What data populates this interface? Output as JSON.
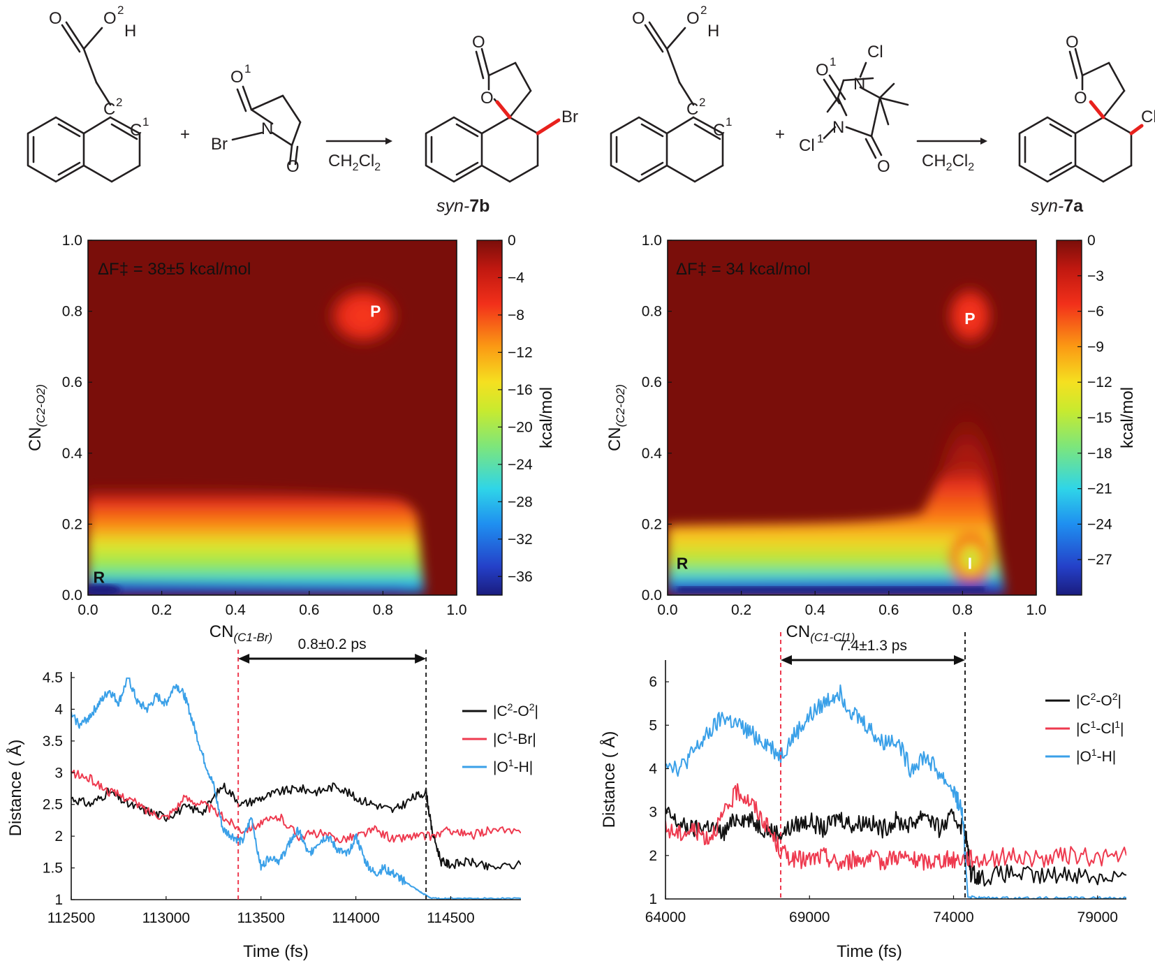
{
  "scheme": {
    "left": {
      "reactant1_atoms": {
        "O_carbonyl": "O",
        "O_hydroxyl": "O",
        "O_sup": "2",
        "H": "H",
        "C2": "C",
        "C2_sup": "2",
        "C1": "C",
        "C1_sup": "1"
      },
      "plus": "+",
      "reagent_atoms": {
        "O_top": "O",
        "O_top_sup": "1",
        "N": "N",
        "Br": "Br",
        "O_bottom": "O"
      },
      "conditions": "CH2Cl2",
      "product_atoms": {
        "O_carbonyl": "O",
        "O_ring": "O",
        "X": "Br"
      },
      "product_label_prefix": "syn-",
      "product_label_bold": "7b"
    },
    "right": {
      "reactant1_atoms": {
        "O_carbonyl": "O",
        "O_hydroxyl": "O",
        "O_sup": "2",
        "H": "H",
        "C2": "C",
        "C2_sup": "2",
        "C1": "C",
        "C1_sup": "1"
      },
      "plus": "+",
      "reagent_atoms": {
        "Cl_top": "Cl",
        "O_top": "O",
        "O_top_sup": "1",
        "N_top": "N",
        "N_left": "N",
        "Cl_left": "Cl",
        "Cl_left_sup": "1",
        "O_bottom": "O"
      },
      "conditions": "CH2Cl2",
      "product_atoms": {
        "O_carbonyl": "O",
        "O_ring": "O",
        "X": "Cl"
      },
      "product_label_prefix": "syn-",
      "product_label_bold": "7a"
    }
  },
  "chart_data": [
    {
      "type": "heatmap",
      "annotation": "ΔF‡ = 38±5 kcal/mol",
      "xlabel_main": "CN",
      "xlabel_sub": "(C1-Br)",
      "ylabel_main": "CN",
      "ylabel_sub": "(C2-O2)",
      "xlim": [
        0.0,
        1.0
      ],
      "ylim": [
        0.0,
        1.0
      ],
      "xticks": [
        "0.0",
        "0.2",
        "0.4",
        "0.6",
        "0.8",
        "1.0"
      ],
      "yticks": [
        "0.0",
        "0.2",
        "0.4",
        "0.6",
        "0.8",
        "1.0"
      ],
      "points": [
        {
          "label": "R",
          "x": 0.03,
          "y": 0.05
        },
        {
          "label": "P",
          "x": 0.78,
          "y": 0.8
        }
      ],
      "colorbar": {
        "label": "kcal/mol",
        "range": [
          -38,
          0
        ],
        "ticks": [
          "0",
          "−4",
          "−8",
          "−12",
          "−16",
          "−20",
          "−24",
          "−28",
          "−32",
          "−36"
        ],
        "tick_values": [
          0,
          -4,
          -8,
          -12,
          -16,
          -20,
          -24,
          -28,
          -32,
          -36
        ]
      },
      "features": [
        {
          "kind": "basin",
          "x": [
            0.0,
            0.85
          ],
          "y": [
            0.0,
            0.28
          ],
          "min_value": -38
        },
        {
          "kind": "well",
          "x": 0.76,
          "y": 0.8,
          "value": -6
        }
      ]
    },
    {
      "type": "heatmap",
      "annotation": "ΔF‡ = 34 kcal/mol",
      "xlabel_main": "CN",
      "xlabel_sub": "(C1-Cl1)",
      "ylabel_main": "CN",
      "ylabel_sub": "(C2-O2)",
      "xlim": [
        0.0,
        1.0
      ],
      "ylim": [
        0.0,
        1.0
      ],
      "xticks": [
        "0.0",
        "0.2",
        "0.4",
        "0.6",
        "0.8",
        "1.0"
      ],
      "yticks": [
        "0.0",
        "0.2",
        "0.4",
        "0.6",
        "0.8",
        "1.0"
      ],
      "points": [
        {
          "label": "R",
          "x": 0.04,
          "y": 0.09
        },
        {
          "label": "I",
          "x": 0.82,
          "y": 0.09
        },
        {
          "label": "P",
          "x": 0.82,
          "y": 0.78
        }
      ],
      "colorbar": {
        "label": "kcal/mol",
        "range": [
          -30,
          0
        ],
        "ticks": [
          "0",
          "−3",
          "−6",
          "−9",
          "−12",
          "−15",
          "−18",
          "−21",
          "−24",
          "−27"
        ],
        "tick_values": [
          0,
          -3,
          -6,
          -9,
          -12,
          -15,
          -18,
          -21,
          -24,
          -27
        ]
      },
      "features": [
        {
          "kind": "basin",
          "x": [
            0.0,
            0.93
          ],
          "y": [
            0.0,
            0.2
          ],
          "min_value": -30
        },
        {
          "kind": "well",
          "x": 0.83,
          "y": 0.12,
          "value": -12
        },
        {
          "kind": "well",
          "x": 0.82,
          "y": 0.8,
          "value": -5
        }
      ]
    },
    {
      "type": "line",
      "xlabel": "Time (fs)",
      "ylabel": "Distance ( Å)",
      "xlim": [
        112500,
        114870
      ],
      "ylim": [
        1,
        4.5
      ],
      "xticks": [
        "112500",
        "113000",
        "113500",
        "114000",
        "114500"
      ],
      "yticks": [
        "1",
        "1.5",
        "2",
        "2.5",
        "3",
        "3.5",
        "4",
        "4.5"
      ],
      "interval_label": "0.8±0.2 ps",
      "markers": [
        {
          "x": 113380,
          "color": "#ee3a4f"
        },
        {
          "x": 114370,
          "color": "#222222"
        }
      ],
      "series": [
        {
          "name": "|C2-O2|",
          "legend_main": "|C",
          "legend_sup1": "2",
          "legend_mid": "-O",
          "legend_sup2": "2",
          "legend_end": "|",
          "color": "#111111",
          "x": [
            112500,
            112600,
            112700,
            112800,
            112900,
            113000,
            113100,
            113200,
            113300,
            113400,
            113500,
            113600,
            113700,
            113800,
            113900,
            114000,
            114100,
            114200,
            114300,
            114370,
            114400,
            114450,
            114500,
            114600,
            114700,
            114870
          ],
          "y": [
            2.6,
            2.5,
            2.7,
            2.5,
            2.4,
            2.3,
            2.45,
            2.4,
            2.8,
            2.5,
            2.6,
            2.7,
            2.75,
            2.7,
            2.8,
            2.6,
            2.5,
            2.4,
            2.6,
            2.7,
            2.1,
            1.6,
            1.55,
            1.6,
            1.5,
            1.55
          ]
        },
        {
          "name": "|C1-Br|",
          "legend_main": "|C",
          "legend_sup1": "1",
          "legend_mid": "-Br|",
          "legend_sup2": "",
          "legend_end": "",
          "color": "#ee3a4f",
          "x": [
            112500,
            112600,
            112700,
            112800,
            112900,
            113000,
            113100,
            113200,
            113300,
            113400,
            113500,
            113600,
            113700,
            113800,
            113900,
            114000,
            114100,
            114200,
            114300,
            114400,
            114500,
            114600,
            114700,
            114870
          ],
          "y": [
            3.0,
            2.9,
            2.7,
            2.6,
            2.4,
            2.3,
            2.6,
            2.5,
            2.3,
            2.1,
            2.2,
            2.3,
            2.0,
            2.05,
            1.95,
            2.0,
            2.1,
            1.95,
            2.0,
            2.0,
            2.1,
            2.0,
            2.1,
            2.05
          ]
        },
        {
          "name": "|O1-H|",
          "legend_main": "|O",
          "legend_sup1": "1",
          "legend_mid": "-H|",
          "legend_sup2": "",
          "legend_end": "",
          "color": "#3aa0e8",
          "x": [
            112500,
            112550,
            112600,
            112650,
            112700,
            112750,
            112800,
            112850,
            112900,
            112950,
            113000,
            113050,
            113100,
            113150,
            113200,
            113250,
            113300,
            113350,
            113400,
            113450,
            113500,
            113550,
            113600,
            113650,
            113700,
            113750,
            113800,
            113850,
            113900,
            113950,
            114000,
            114050,
            114100,
            114150,
            114200,
            114250,
            114300,
            114350,
            114400,
            114500,
            114600,
            114700,
            114870
          ],
          "y": [
            3.9,
            3.75,
            3.9,
            4.1,
            4.3,
            4.1,
            4.5,
            4.1,
            4.0,
            4.2,
            4.1,
            4.4,
            4.2,
            3.7,
            3.2,
            2.8,
            2.1,
            2.0,
            1.9,
            2.3,
            1.5,
            1.7,
            1.6,
            1.9,
            2.1,
            1.7,
            1.9,
            2.0,
            1.8,
            1.7,
            2.0,
            1.6,
            1.4,
            1.5,
            1.4,
            1.3,
            1.2,
            1.1,
            1.02,
            1.02,
            1.02,
            1.02,
            1.02
          ]
        }
      ]
    },
    {
      "type": "line",
      "xlabel": "Time (fs)",
      "ylabel": "Distance ( Å)",
      "xlim": [
        64000,
        80000
      ],
      "ylim": [
        1,
        6.5
      ],
      "xticks": [
        "64000",
        "69000",
        "74000",
        "79000"
      ],
      "yticks": [
        "1",
        "2",
        "3",
        "4",
        "5",
        "6"
      ],
      "interval_label": "7.4±1.3 ps",
      "markers": [
        {
          "x": 68000,
          "color": "#ee3a4f"
        },
        {
          "x": 74400,
          "color": "#222222"
        }
      ],
      "series": [
        {
          "name": "|C2-O2|",
          "legend_main": "|C",
          "legend_sup1": "2",
          "legend_mid": "-O",
          "legend_sup2": "2",
          "legend_end": "|",
          "color": "#111111",
          "x": [
            64000,
            64500,
            65000,
            65500,
            66000,
            66500,
            67000,
            67500,
            68000,
            68500,
            69000,
            69500,
            70000,
            70500,
            71000,
            71500,
            72000,
            72500,
            73000,
            73500,
            74000,
            74400,
            74600,
            75000,
            76000,
            77000,
            78000,
            79000,
            80000
          ],
          "y": [
            3.0,
            2.7,
            2.6,
            2.7,
            2.5,
            2.9,
            2.8,
            2.6,
            2.5,
            2.7,
            2.8,
            2.6,
            2.9,
            2.7,
            2.8,
            2.6,
            2.8,
            2.7,
            3.0,
            2.6,
            2.9,
            2.6,
            1.6,
            1.5,
            1.6,
            1.5,
            1.6,
            1.5,
            1.55
          ]
        },
        {
          "name": "|C1-Cl1|",
          "legend_main": "|C",
          "legend_sup1": "1",
          "legend_mid": "-Cl",
          "legend_sup2": "1",
          "legend_end": "|",
          "color": "#ee3a4f",
          "x": [
            64000,
            64500,
            65000,
            65500,
            66000,
            66500,
            67000,
            67500,
            68000,
            68500,
            69000,
            69500,
            70000,
            70500,
            71000,
            71500,
            72000,
            72500,
            73000,
            73500,
            74000,
            74500,
            75000,
            76000,
            77000,
            78000,
            79000,
            80000
          ],
          "y": [
            2.6,
            2.5,
            2.6,
            2.4,
            2.9,
            3.5,
            3.2,
            2.7,
            2.1,
            1.9,
            1.9,
            2.0,
            1.8,
            1.9,
            1.95,
            1.85,
            2.0,
            1.9,
            1.85,
            1.9,
            1.9,
            1.95,
            1.9,
            2.0,
            1.9,
            2.0,
            1.95,
            2.0
          ]
        },
        {
          "name": "|O1-H|",
          "legend_main": "|O",
          "legend_sup1": "1",
          "legend_mid": "-H|",
          "legend_sup2": "",
          "legend_end": "",
          "color": "#3aa0e8",
          "x": [
            64000,
            64500,
            65000,
            65500,
            66000,
            66500,
            67000,
            67500,
            68000,
            68500,
            69000,
            69500,
            70000,
            70500,
            71000,
            71500,
            72000,
            72500,
            73000,
            73500,
            74000,
            74300,
            74500,
            75000,
            76000,
            77000,
            78000,
            79000,
            80000
          ],
          "y": [
            4.2,
            4.0,
            4.4,
            4.8,
            5.2,
            5.0,
            4.8,
            4.6,
            4.3,
            4.8,
            5.2,
            5.5,
            5.8,
            5.3,
            5.0,
            4.6,
            4.7,
            4.0,
            4.3,
            3.9,
            3.5,
            3.0,
            1.05,
            1.02,
            1.02,
            1.02,
            1.02,
            1.02,
            1.02
          ]
        }
      ]
    }
  ]
}
